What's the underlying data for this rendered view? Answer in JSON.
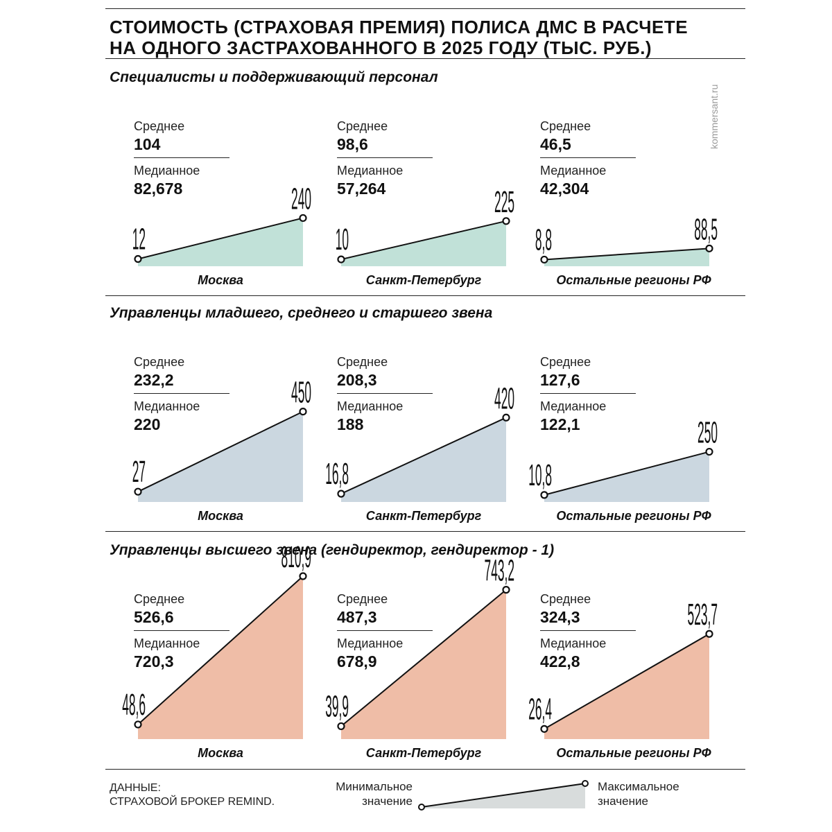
{
  "title": {
    "line1": "СТОИМОСТЬ (СТРАХОВАЯ ПРЕМИЯ) ПОЛИСА ДМС В РАСЧЕТЕ",
    "line2": "НА ОДНОГО ЗАСТРАХОВАННОГО В 2025 ГОДУ (ТЫС. РУБ.)"
  },
  "watermark": "kommersant.ru",
  "labels": {
    "avg": "Среднее",
    "median": "Медианное"
  },
  "colors": {
    "specialists": "#c1e1d8",
    "managers": "#cbd7e0",
    "top": "#efbda7",
    "legend": "#d8dcdc"
  },
  "chart_data": [
    {
      "type": "area",
      "title": "Специалисты и поддерживающий персонал",
      "ylim": [
        0,
        810.9
      ],
      "categories": [
        "Москва",
        "Санкт-Петербург",
        "Остальные регионы РФ"
      ],
      "series": [
        {
          "region": "Москва",
          "avg": "104",
          "median": "82,678",
          "min": 12,
          "max": 240,
          "min_label": "12",
          "max_label": "240"
        },
        {
          "region": "Санкт-Петербург",
          "avg": "98,6",
          "median": "57,264",
          "min": 10,
          "max": 225,
          "min_label": "10",
          "max_label": "225"
        },
        {
          "region": "Остальные регионы РФ",
          "avg": "46,5",
          "median": "42,304",
          "min": 8.8,
          "max": 88.5,
          "min_label": "8,8",
          "max_label": "88,5"
        }
      ]
    },
    {
      "type": "area",
      "title": "Управленцы младшего, среднего и старшего звена",
      "ylim": [
        0,
        810.9
      ],
      "categories": [
        "Москва",
        "Санкт-Петербург",
        "Остальные регионы РФ"
      ],
      "series": [
        {
          "region": "Москва",
          "avg": "232,2",
          "median": "220",
          "min": 27,
          "max": 450,
          "min_label": "27",
          "max_label": "450"
        },
        {
          "region": "Санкт-Петербург",
          "avg": "208,3",
          "median": "188",
          "min": 16.8,
          "max": 420,
          "min_label": "16,8",
          "max_label": "420"
        },
        {
          "region": "Остальные регионы РФ",
          "avg": "127,6",
          "median": "122,1",
          "min": 10.8,
          "max": 250,
          "min_label": "10,8",
          "max_label": "250"
        }
      ]
    },
    {
      "type": "area",
      "title": "Управленцы высшего звена (гендиректор, гендиректор - 1)",
      "ylim": [
        0,
        810.9
      ],
      "categories": [
        "Москва",
        "Санкт-Петербург",
        "Остальные регионы РФ"
      ],
      "series": [
        {
          "region": "Москва",
          "avg": "526,6",
          "median": "720,3",
          "min": 48.6,
          "max": 810.9,
          "min_label": "48,6",
          "max_label": "810,9"
        },
        {
          "region": "Санкт-Петербург",
          "avg": "487,3",
          "median": "678,9",
          "min": 39.9,
          "max": 743.2,
          "min_label": "39,9",
          "max_label": "743,2"
        },
        {
          "region": "Остальные регионы РФ",
          "avg": "324,3",
          "median": "422,8",
          "min": 26.4,
          "max": 523.7,
          "min_label": "26,4",
          "max_label": "523,7"
        }
      ]
    }
  ],
  "source": {
    "line1": "ДАННЫЕ:",
    "line2": "СТРАХОВОЙ БРОКЕР REMIND."
  },
  "legend": {
    "min_line1": "Минимальное",
    "min_line2": "значение",
    "max_line1": "Максимальное",
    "max_line2": "значение"
  }
}
